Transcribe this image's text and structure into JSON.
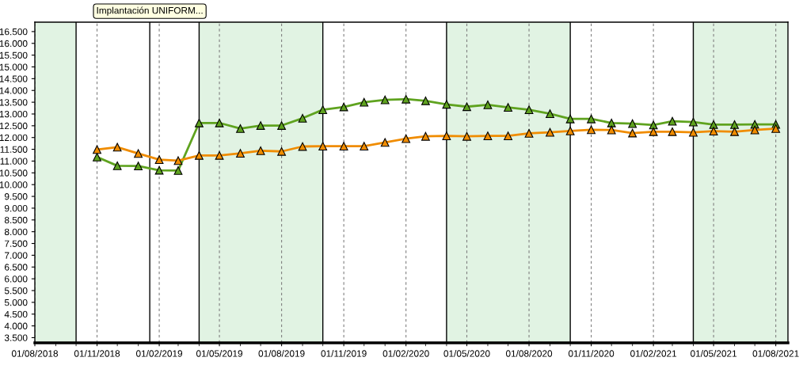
{
  "chart_data": {
    "type": "line",
    "x": [
      "2018-11-01",
      "2018-12-01",
      "2019-01-01",
      "2019-02-01",
      "2019-03-01",
      "2019-04-01",
      "2019-05-01",
      "2019-06-01",
      "2019-07-01",
      "2019-08-01",
      "2019-09-01",
      "2019-10-01",
      "2019-11-01",
      "2019-12-01",
      "2020-01-01",
      "2020-02-01",
      "2020-03-01",
      "2020-04-01",
      "2020-05-01",
      "2020-06-01",
      "2020-07-01",
      "2020-08-01",
      "2020-09-01",
      "2020-10-01",
      "2020-11-01",
      "2020-12-01",
      "2021-01-01",
      "2021-02-01",
      "2021-03-01",
      "2021-04-01",
      "2021-05-01",
      "2021-06-01",
      "2021-07-01",
      "2021-08-01"
    ],
    "series": [
      {
        "color": "#5fa31f",
        "values": [
          11170,
          10800,
          10790,
          10610,
          10600,
          12620,
          12620,
          12380,
          12510,
          12510,
          12820,
          13180,
          13300,
          13500,
          13600,
          13630,
          13560,
          13410,
          13310,
          13390,
          13280,
          13180,
          13010,
          12790,
          12790,
          12620,
          12590,
          12530,
          12690,
          12660,
          12550,
          12550,
          12560,
          12560
        ]
      },
      {
        "color": "#f08c00",
        "values": [
          11490,
          11590,
          11320,
          11060,
          11020,
          11240,
          11240,
          11330,
          11440,
          11410,
          11620,
          11630,
          11630,
          11630,
          11790,
          11950,
          12050,
          12070,
          12050,
          12070,
          12070,
          12180,
          12220,
          12280,
          12330,
          12320,
          12190,
          12250,
          12250,
          12220,
          12270,
          12250,
          12320,
          12380
        ]
      }
    ],
    "marker": "triangle",
    "line_style": "solid",
    "grid": "x",
    "xlim": [
      "2018-08-01",
      "2021-08-19"
    ],
    "xticks": [
      {
        "value": "2018-08-01",
        "label": "01/08/2018"
      },
      {
        "value": "2018-11-01",
        "label": "01/11/2018"
      },
      {
        "value": "2019-02-01",
        "label": "01/02/2019"
      },
      {
        "value": "2019-05-01",
        "label": "01/05/2019"
      },
      {
        "value": "2019-08-01",
        "label": "01/08/2019"
      },
      {
        "value": "2019-11-01",
        "label": "01/11/2019"
      },
      {
        "value": "2020-02-01",
        "label": "01/02/2020"
      },
      {
        "value": "2020-05-01",
        "label": "01/05/2020"
      },
      {
        "value": "2020-08-01",
        "label": "01/08/2020"
      },
      {
        "value": "2020-11-01",
        "label": "01/11/2020"
      },
      {
        "value": "2021-02-01",
        "label": "01/02/2021"
      },
      {
        "value": "2021-05-01",
        "label": "01/05/2021"
      },
      {
        "value": "2021-08-01",
        "label": "01/08/2021"
      }
    ],
    "ylim": [
      3280,
      16900
    ],
    "yticks": [
      {
        "value": 3500,
        "label": "3.500"
      },
      {
        "value": 4000,
        "label": "4.000"
      },
      {
        "value": 4500,
        "label": "4.500"
      },
      {
        "value": 5000,
        "label": "5.000"
      },
      {
        "value": 5500,
        "label": "5.500"
      },
      {
        "value": 6000,
        "label": "6.000"
      },
      {
        "value": 6500,
        "label": "6.500"
      },
      {
        "value": 7000,
        "label": "7.000"
      },
      {
        "value": 7500,
        "label": "7.500"
      },
      {
        "value": 8000,
        "label": "8.000"
      },
      {
        "value": 8500,
        "label": "8.500"
      },
      {
        "value": 9000,
        "label": "9.000"
      },
      {
        "value": 9500,
        "label": "9.500"
      },
      {
        "value": 10000,
        "label": "10.000"
      },
      {
        "value": 10500,
        "label": "10.500"
      },
      {
        "value": 11000,
        "label": "11.000"
      },
      {
        "value": 11500,
        "label": "11.500"
      },
      {
        "value": 12000,
        "label": "12.000"
      },
      {
        "value": 12500,
        "label": "12.500"
      },
      {
        "value": 13000,
        "label": "13.000"
      },
      {
        "value": 13500,
        "label": "13.500"
      },
      {
        "value": 14000,
        "label": "14.000"
      },
      {
        "value": 14500,
        "label": "14.500"
      },
      {
        "value": 15000,
        "label": "15.000"
      },
      {
        "value": 15500,
        "label": "15.500"
      },
      {
        "value": 16000,
        "label": "16.000"
      },
      {
        "value": 16500,
        "label": "16.500"
      }
    ],
    "bands": [
      {
        "axis": "x",
        "from": "2018-08-01",
        "to": "2018-10-01",
        "color": "#e1f3e3"
      },
      {
        "axis": "x",
        "from": "2019-04-01",
        "to": "2019-10-01",
        "color": "#e1f3e3"
      },
      {
        "axis": "x",
        "from": "2020-04-01",
        "to": "2020-10-01",
        "color": "#e1f3e3"
      },
      {
        "axis": "x",
        "from": "2021-04-01",
        "to": "2021-08-19",
        "color": "#e1f3e3"
      }
    ],
    "ref_lines": [
      {
        "axis": "x",
        "value": "2018-10-01",
        "color": "#000000",
        "line_style": "solid"
      },
      {
        "axis": "x",
        "value": "2019-01-18",
        "color": "#000000",
        "line_style": "solid",
        "label": "Implantación UNIFORM..."
      },
      {
        "axis": "x",
        "value": "2019-04-01",
        "color": "#000000",
        "line_style": "solid"
      },
      {
        "axis": "x",
        "value": "2019-10-01",
        "color": "#000000",
        "line_style": "solid"
      },
      {
        "axis": "x",
        "value": "2020-04-01",
        "color": "#000000",
        "line_style": "solid"
      },
      {
        "axis": "x",
        "value": "2020-10-01",
        "color": "#000000",
        "line_style": "solid"
      },
      {
        "axis": "x",
        "value": "2021-04-01",
        "color": "#000000",
        "line_style": "solid"
      }
    ]
  }
}
